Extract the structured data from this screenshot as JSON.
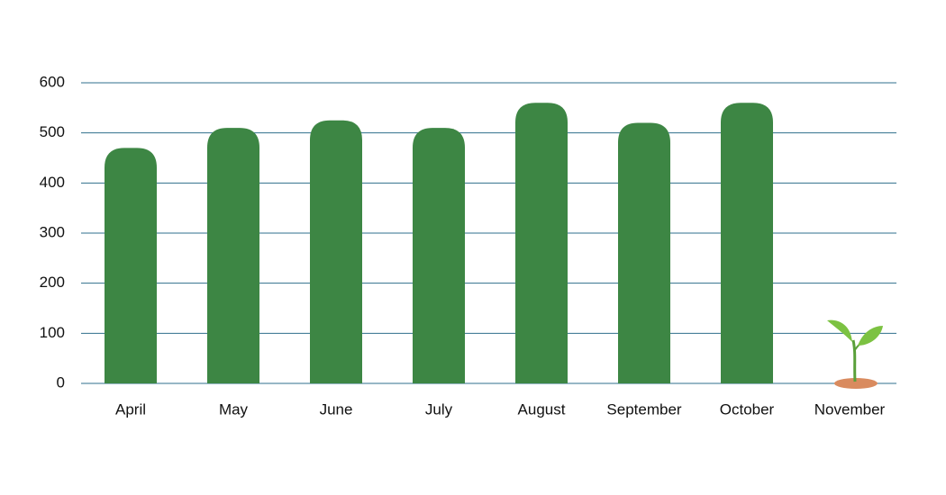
{
  "chart_data": {
    "type": "bar",
    "categories": [
      "April",
      "May",
      "June",
      "July",
      "August",
      "September",
      "October",
      "November"
    ],
    "values": [
      470,
      510,
      525,
      510,
      560,
      520,
      560,
      null
    ],
    "color": "#3d8644",
    "ylim": [
      0,
      600
    ],
    "yticks": [
      0,
      100,
      200,
      300,
      400,
      500,
      600
    ],
    "grid": true
  }
}
